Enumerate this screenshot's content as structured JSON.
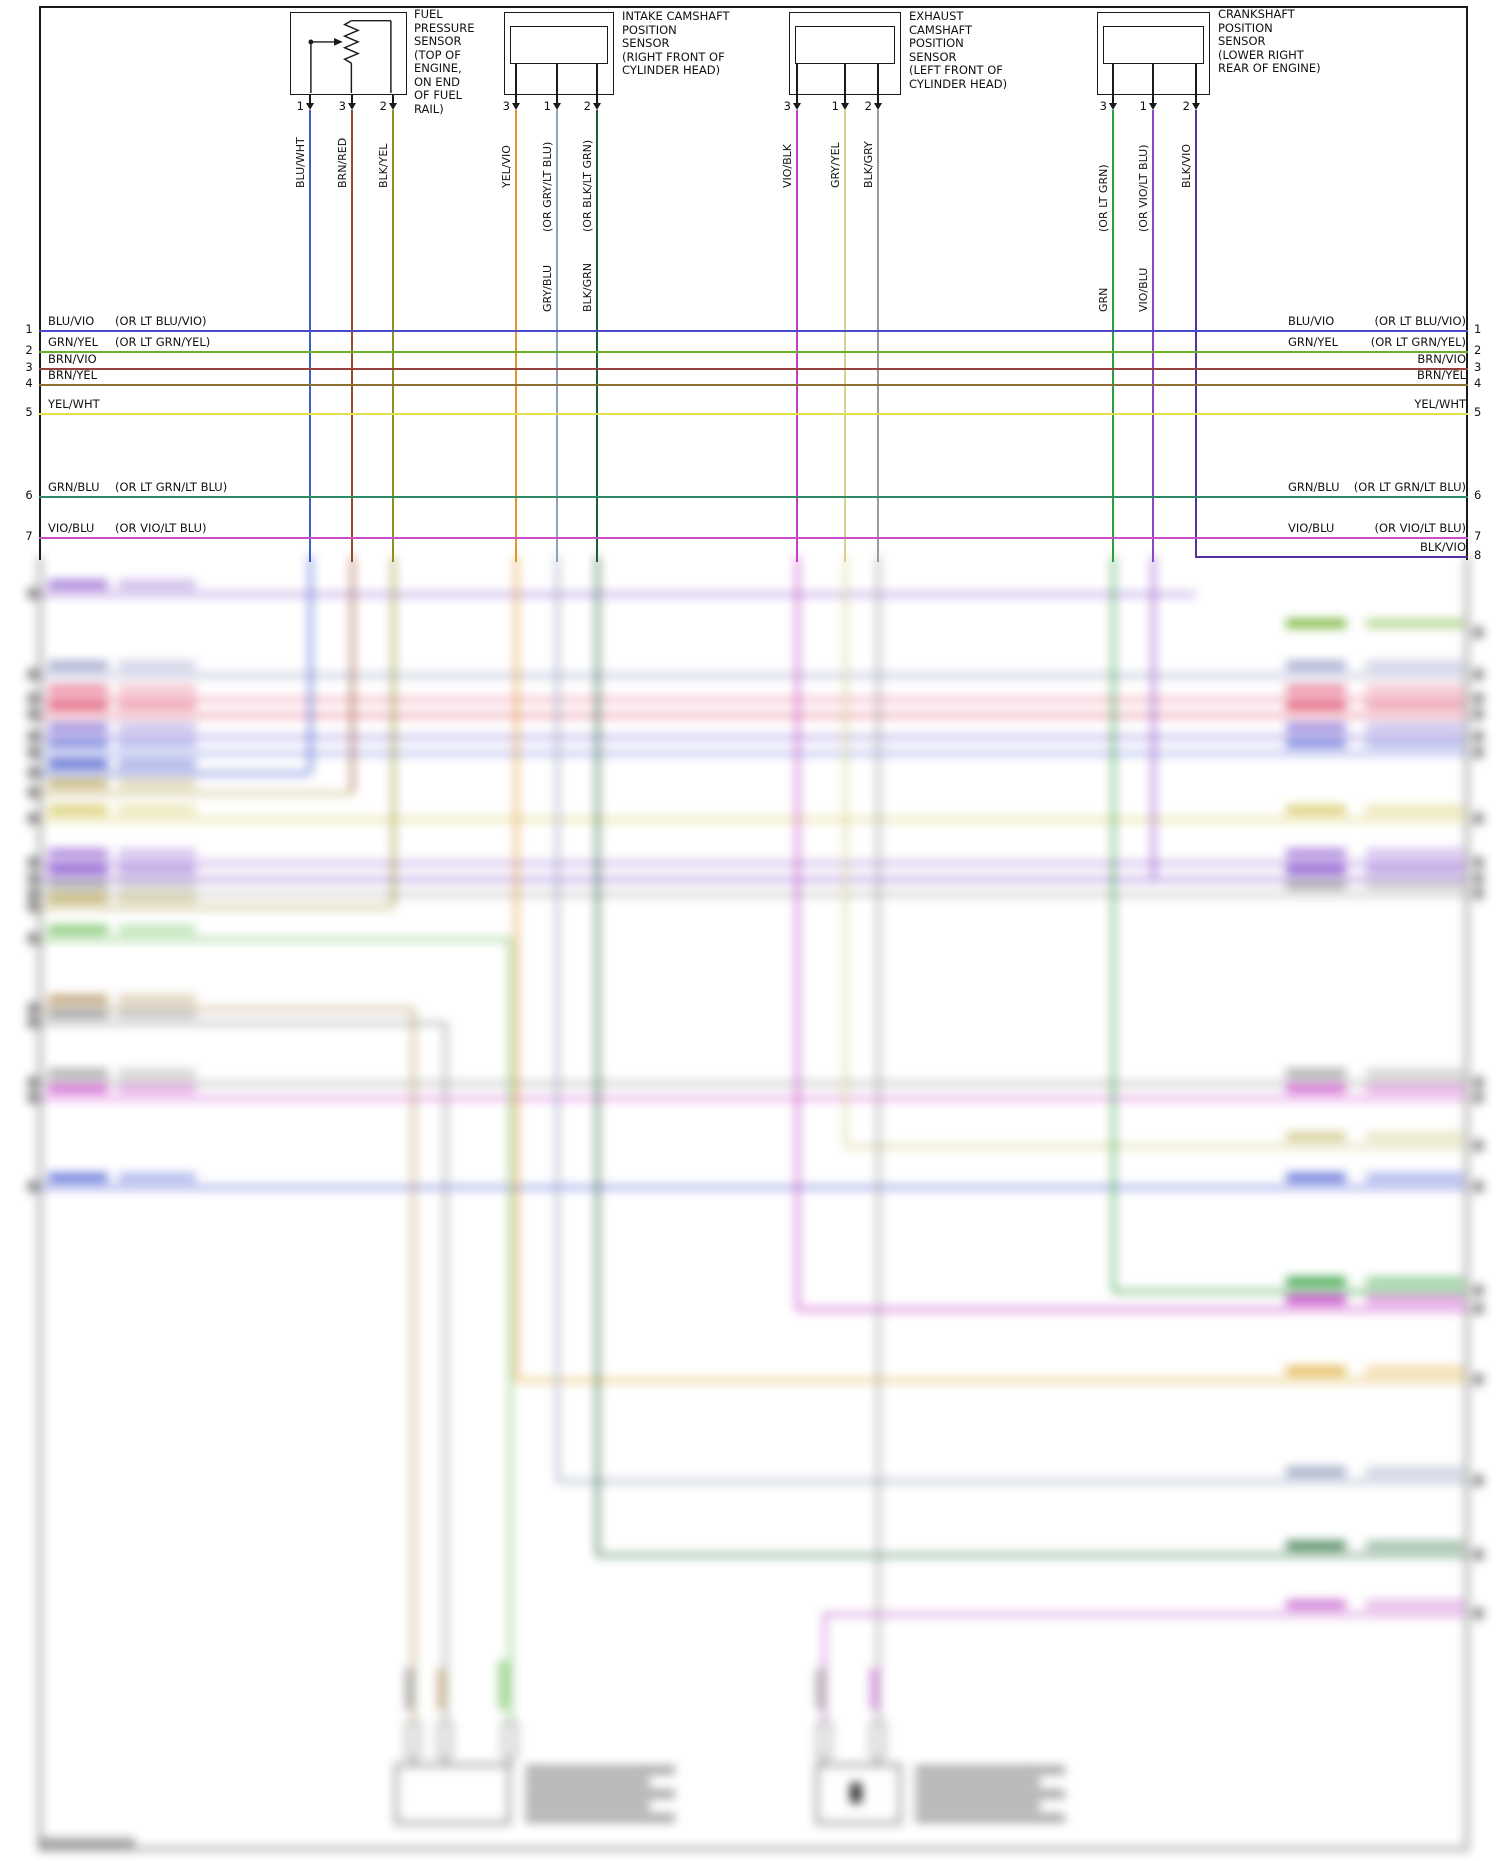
{
  "sensors": [
    {
      "id": "fuel-pressure-sensor",
      "label": "FUEL\nPRESSURE\nSENSOR\n(TOP OF\nENGINE,\nON END\nOF FUEL\nRAIL)",
      "pins": [
        {
          "num": "1",
          "wire": "BLU/WHT",
          "alt": "",
          "color": "#3c5ccd"
        },
        {
          "num": "3",
          "wire": "BRN/RED",
          "alt": "",
          "color": "#9a4a28"
        },
        {
          "num": "2",
          "wire": "BLK/YEL",
          "alt": "",
          "color": "#8e8d2a"
        }
      ]
    },
    {
      "id": "intake-camshaft-position-sensor",
      "label": "INTAKE CAMSHAFT\nPOSITION\nSENSOR\n(RIGHT FRONT OF\nCYLINDER HEAD)",
      "pins": [
        {
          "num": "3",
          "wire": "YEL/VIO",
          "alt": "",
          "color": "#e2952f"
        },
        {
          "num": "1",
          "wire": "GRY/BLU",
          "alt": "(OR GRY/LT BLU)",
          "color": "#93a0bc"
        },
        {
          "num": "2",
          "wire": "BLK/GRN",
          "alt": "(OR BLK/LT GRN)",
          "color": "#1f5c33"
        }
      ]
    },
    {
      "id": "exhaust-camshaft-position-sensor",
      "label": "EXHAUST\nCAMSHAFT\nPOSITION\nSENSOR\n(LEFT FRONT OF\nCYLINDER HEAD)",
      "pins": [
        {
          "num": "3",
          "wire": "VIO/BLK",
          "alt": "",
          "color": "#c53ec5"
        },
        {
          "num": "1",
          "wire": "GRY/YEL",
          "alt": "",
          "color": "#d6d18a"
        },
        {
          "num": "2",
          "wire": "BLK/GRY",
          "alt": "",
          "color": "#9a9a9a"
        }
      ]
    },
    {
      "id": "crankshaft-position-sensor",
      "label": "CRANKSHAFT\nPOSITION\nSENSOR\n(LOWER RIGHT\nREAR OF ENGINE)",
      "pins": [
        {
          "num": "3",
          "wire": "GRN",
          "alt": "(OR LT GRN)",
          "color": "#2f9e3b"
        },
        {
          "num": "1",
          "wire": "VIO/BLU",
          "alt": "(OR VIO/LT BLU)",
          "color": "#8a46c6"
        },
        {
          "num": "2",
          "wire": "BLK/VIO",
          "alt": "",
          "color": "#53309b"
        }
      ]
    }
  ],
  "rows": [
    {
      "num": "1",
      "label": "BLU/VIO",
      "alt": "(OR LT BLU/VIO)",
      "color": "#4848c8",
      "sides": "both"
    },
    {
      "num": "2",
      "label": "GRN/YEL",
      "alt": "(OR LT GRN/YEL)",
      "color": "#6fae2a",
      "sides": "both"
    },
    {
      "num": "3",
      "label": "BRN/VIO",
      "alt": "",
      "color": "#97423c",
      "sides": "both"
    },
    {
      "num": "4",
      "label": "BRN/YEL",
      "alt": "",
      "color": "#8f6e34",
      "sides": "both"
    },
    {
      "num": "5",
      "label": "YEL/WHT",
      "alt": "",
      "color": "#e3df4a",
      "sides": "both"
    },
    {
      "num": "6",
      "label": "GRN/BLU",
      "alt": "(OR LT GRN/LT BLU)",
      "color": "#2f8a66",
      "sides": "both"
    },
    {
      "num": "7",
      "label": "VIO/BLU",
      "alt": "(OR VIO/LT BLU)",
      "color": "#c94fc9",
      "sides": "both"
    },
    {
      "num": "8",
      "label": "BLK/VIO",
      "alt": "",
      "color": "#53309b",
      "sides": "right"
    }
  ]
}
